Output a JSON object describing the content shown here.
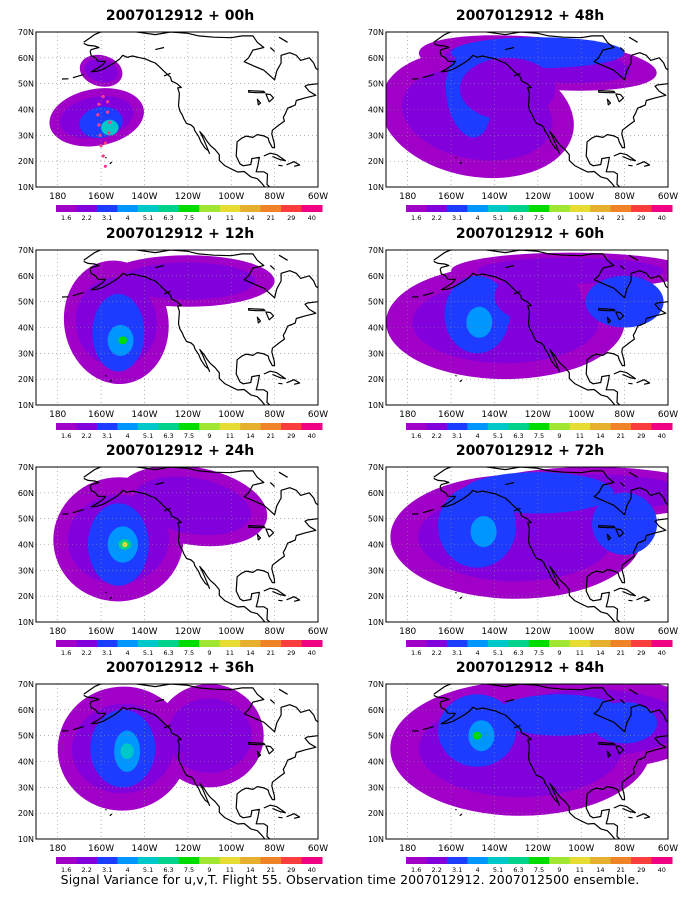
{
  "panels": [
    {
      "title": "2007012912 + 00h"
    },
    {
      "title": "2007012912 + 48h"
    },
    {
      "title": "2007012912 + 12h"
    },
    {
      "title": "2007012912 + 60h"
    },
    {
      "title": "2007012912 + 24h"
    },
    {
      "title": "2007012912 + 72h"
    },
    {
      "title": "2007012912 + 36h"
    },
    {
      "title": "2007012912 + 84h"
    }
  ],
  "lat_labels": [
    "10N",
    "20N",
    "30N",
    "40N",
    "50N",
    "60N",
    "70N"
  ],
  "lon_labels": [
    "180",
    "160W",
    "140W",
    "120W",
    "100W",
    "80W",
    "60W"
  ],
  "colorbar": {
    "labels": [
      "1.6",
      "2.2",
      "3.1",
      "4",
      "5.1",
      "6.3",
      "7.5",
      "9",
      "11",
      "14",
      "21",
      "29",
      "40"
    ],
    "colors": [
      "#a000c8",
      "#8200dc",
      "#1e3cff",
      "#0096ff",
      "#00c8c8",
      "#00d28c",
      "#00dc00",
      "#a0e632",
      "#e6dc32",
      "#e6af2d",
      "#f08228",
      "#fa3c3c",
      "#f00082"
    ]
  },
  "caption": "Signal Variance for u,v,T. Flight 55. Observation time 2007012912. 2007012500 ensemble."
}
